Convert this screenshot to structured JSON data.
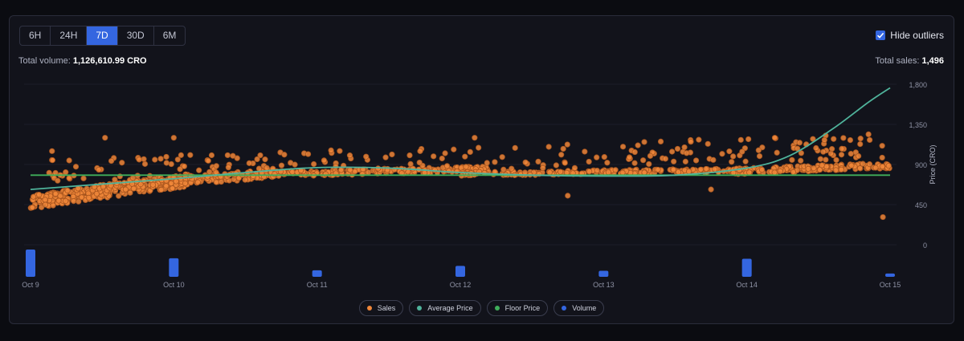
{
  "tabs": [
    {
      "label": "6H",
      "active": false
    },
    {
      "label": "24H",
      "active": false
    },
    {
      "label": "7D",
      "active": true
    },
    {
      "label": "30D",
      "active": false
    },
    {
      "label": "6M",
      "active": false
    }
  ],
  "hide_outliers": {
    "label": "Hide outliers",
    "checked": true
  },
  "total_volume": {
    "label": "Total volume:",
    "value": "1,126,610.99 CRO"
  },
  "total_sales": {
    "label": "Total sales:",
    "value": "1,496"
  },
  "colors": {
    "accent": "#3466e0",
    "sales": "#f0873a",
    "average": "#4fb39b",
    "floor": "#3fae5a",
    "volume": "#3466e0"
  },
  "legend": [
    {
      "label": "Sales",
      "color": "#f0873a"
    },
    {
      "label": "Average Price",
      "color": "#4fb39b"
    },
    {
      "label": "Floor Price",
      "color": "#3fae5a"
    },
    {
      "label": "Volume",
      "color": "#3466e0"
    }
  ],
  "chart_data": {
    "type": "scatter",
    "ylabel": "Price (CRO)",
    "ylim": [
      0,
      1800
    ],
    "yticks": [
      "0",
      "450",
      "900",
      "1,350",
      "1,800"
    ],
    "xticks": [
      "Oct 9",
      "Oct 10",
      "Oct 11",
      "Oct 12",
      "Oct 13",
      "Oct 14",
      "Oct 15"
    ],
    "xlim": [
      0,
      6
    ],
    "floor_price": 780,
    "average_price": [
      {
        "x": 0,
        "y": 620
      },
      {
        "x": 0.5,
        "y": 680
      },
      {
        "x": 1,
        "y": 740
      },
      {
        "x": 1.5,
        "y": 810
      },
      {
        "x": 2,
        "y": 865
      },
      {
        "x": 2.5,
        "y": 860
      },
      {
        "x": 3,
        "y": 810
      },
      {
        "x": 3.5,
        "y": 780
      },
      {
        "x": 4,
        "y": 770
      },
      {
        "x": 4.5,
        "y": 780
      },
      {
        "x": 5,
        "y": 860
      },
      {
        "x": 5.3,
        "y": 1000
      },
      {
        "x": 5.6,
        "y": 1300
      },
      {
        "x": 5.85,
        "y": 1600
      },
      {
        "x": 6,
        "y": 1760
      }
    ],
    "volume": [
      {
        "x": 0,
        "rel": 1.0
      },
      {
        "x": 1,
        "rel": 0.68
      },
      {
        "x": 2,
        "rel": 0.24
      },
      {
        "x": 3,
        "rel": 0.4
      },
      {
        "x": 4,
        "rel": 0.22
      },
      {
        "x": 5,
        "rel": 0.66
      },
      {
        "x": 6,
        "rel": 0.12
      }
    ],
    "sales_bands": [
      {
        "x0": 0.0,
        "x1": 0.6,
        "y0": 400,
        "y1": 700,
        "n": 180
      },
      {
        "x0": 0.4,
        "x1": 1.1,
        "y0": 500,
        "y1": 800,
        "n": 170
      },
      {
        "x0": 0.9,
        "x1": 1.7,
        "y0": 650,
        "y1": 850,
        "n": 130
      },
      {
        "x0": 1.6,
        "x1": 3.2,
        "y0": 760,
        "y1": 880,
        "n": 210
      },
      {
        "x0": 3.0,
        "x1": 5.0,
        "y0": 770,
        "y1": 860,
        "n": 210
      },
      {
        "x0": 4.9,
        "x1": 6.0,
        "y0": 790,
        "y1": 920,
        "n": 170
      },
      {
        "x0": 0.1,
        "x1": 6.0,
        "y0": 680,
        "y1": 1250,
        "n": 230
      }
    ],
    "sales_points": [
      {
        "x": 0.15,
        "y": 1050
      },
      {
        "x": 0.52,
        "y": 1200
      },
      {
        "x": 1.0,
        "y": 1200
      },
      {
        "x": 3.1,
        "y": 1200
      },
      {
        "x": 3.75,
        "y": 550
      },
      {
        "x": 4.75,
        "y": 620
      },
      {
        "x": 5.95,
        "y": 310
      }
    ]
  }
}
